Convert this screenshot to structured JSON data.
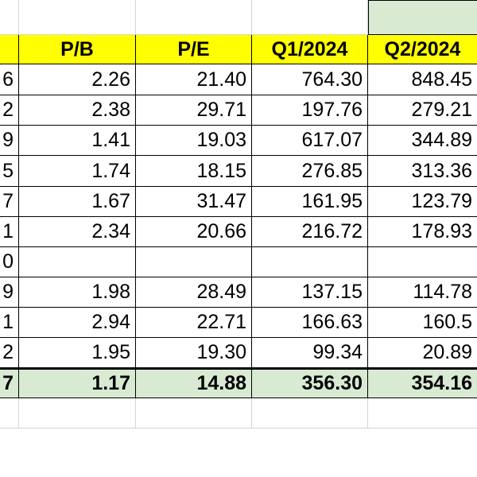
{
  "header": {
    "pb": "P/B",
    "pe": "P/E",
    "q1": "Q1/2024",
    "q2": "Q2/2024"
  },
  "rows": [
    {
      "first": "6",
      "pb": "2.26",
      "pe": "21.40",
      "q1": "764.30",
      "q2": "848.45"
    },
    {
      "first": "2",
      "pb": "2.38",
      "pe": "29.71",
      "q1": "197.76",
      "q2": "279.21"
    },
    {
      "first": "9",
      "pb": "1.41",
      "pe": "19.03",
      "q1": "617.07",
      "q2": "344.89"
    },
    {
      "first": "5",
      "pb": "1.74",
      "pe": "18.15",
      "q1": "276.85",
      "q2": "313.36"
    },
    {
      "first": "7",
      "pb": "1.67",
      "pe": "31.47",
      "q1": "161.95",
      "q2": "123.79"
    },
    {
      "first": "1",
      "pb": "2.34",
      "pe": "20.66",
      "q1": "216.72",
      "q2": "178.93"
    },
    {
      "first": "0",
      "pb": "",
      "pe": "",
      "q1": "",
      "q2": ""
    },
    {
      "first": "9",
      "pb": "1.98",
      "pe": "28.49",
      "q1": "137.15",
      "q2": "114.78"
    },
    {
      "first": "1",
      "pb": "2.94",
      "pe": "22.71",
      "q1": "166.63",
      "q2": "160.5"
    },
    {
      "first": "2",
      "pb": "1.95",
      "pe": "19.30",
      "q1": "99.34",
      "q2": "20.89"
    },
    {
      "first": "7",
      "pb": "1.17",
      "pe": "14.88",
      "q1": "356.30",
      "q2": "354.16"
    }
  ],
  "colors": {
    "header_fill": "#ffff00",
    "green_fill": "#d9ead3",
    "grid_line": "#d4d4d4",
    "border": "#000000"
  }
}
